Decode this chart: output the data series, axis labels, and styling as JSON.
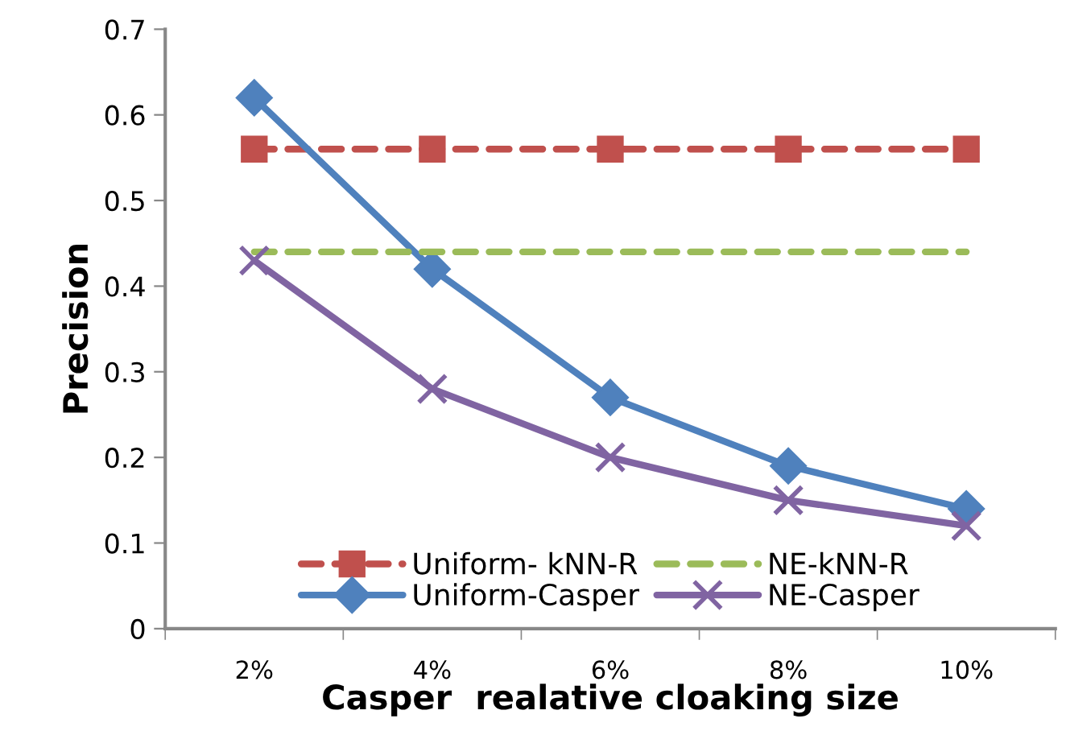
{
  "chart_data": {
    "type": "line",
    "xlabel": "Casper  realative cloaking size",
    "ylabel": "Precision",
    "categories": [
      "2%",
      "4%",
      "6%",
      "8%",
      "10%"
    ],
    "series": [
      {
        "name": "Uniform- kNN-R",
        "color": "#c0504d",
        "values": [
          0.56,
          0.56,
          0.56,
          0.56,
          0.56
        ],
        "marker": "square",
        "line_style": "dashed"
      },
      {
        "name": "Uniform-Casper",
        "color": "#4f81bd",
        "values": [
          0.62,
          0.42,
          0.27,
          0.19,
          0.14
        ],
        "marker": "diamond",
        "line_style": "solid"
      },
      {
        "name": "NE-kNN-R",
        "color": "#9bbb59",
        "values": [
          0.44,
          0.44,
          0.44,
          0.44,
          0.44
        ],
        "marker": "none",
        "line_style": "dashed"
      },
      {
        "name": "NE-Casper",
        "color": "#8064a2",
        "values": [
          0.43,
          0.28,
          0.2,
          0.15,
          0.12
        ],
        "marker": "cross",
        "line_style": "solid"
      }
    ],
    "ylim": [
      0,
      0.7
    ],
    "yticks": [
      0,
      0.1,
      0.2,
      0.3,
      0.4,
      0.5,
      0.6,
      0.7
    ],
    "grid": false,
    "legend": "bottom"
  }
}
